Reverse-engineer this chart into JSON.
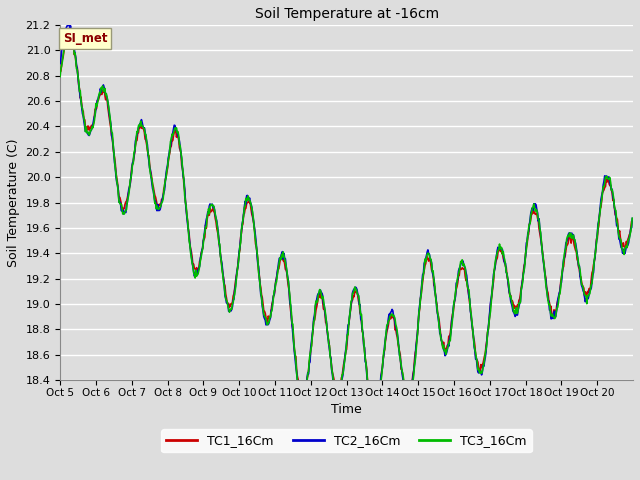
{
  "title": "Soil Temperature at -16cm",
  "xlabel": "Time",
  "ylabel": "Soil Temperature (C)",
  "ylim": [
    18.4,
    21.2
  ],
  "background_color": "#dddddd",
  "plot_bg_color": "#dddddd",
  "grid_color": "#ffffff",
  "colors": {
    "TC1": "#cc0000",
    "TC2": "#0000cc",
    "TC3": "#00bb00"
  },
  "legend_labels": [
    "TC1_16Cm",
    "TC2_16Cm",
    "TC3_16Cm"
  ],
  "watermark": "SI_met",
  "watermark_color": "#8b0000",
  "watermark_bg": "#ffffcc",
  "x_tick_labels": [
    "Oct 5",
    "Oct 6",
    "Oct 7",
    "Oct 8",
    "Oct 9",
    "Oct 10",
    "Oct 11",
    "Oct 12",
    "Oct 13",
    "Oct 14",
    "Oct 15",
    "Oct 16",
    "Oct 17",
    "Oct 18",
    "Oct 19",
    "Oct 20"
  ],
  "num_days": 16,
  "points_per_day": 48,
  "line_width": 1.2,
  "figwidth": 6.4,
  "figheight": 4.8,
  "dpi": 100
}
